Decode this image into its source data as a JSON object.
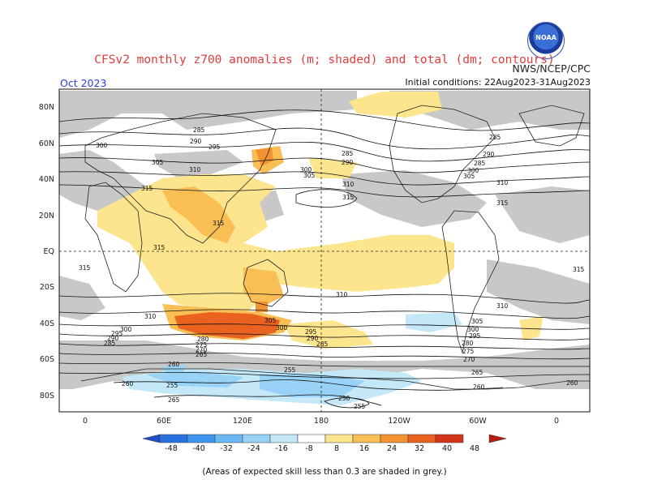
{
  "title": "CFSv2 monthly z700 anomalies (m; shaded) and total (dm; contours)",
  "agency": "NWS/NCEP/CPC",
  "month": "Oct 2023",
  "initial_conditions": "Initial conditions: 22Aug2023-31Aug2023",
  "logo_text": "NOAA",
  "lat_labels": [
    "80N",
    "60N",
    "40N",
    "20N",
    "EQ",
    "20S",
    "40S",
    "60S",
    "80S"
  ],
  "lon_labels": [
    "0",
    "60E",
    "120E",
    "180",
    "120W",
    "60W",
    "0"
  ],
  "contour_labels": [
    "285",
    "290",
    "295",
    "300",
    "305",
    "310",
    "315",
    "280",
    "275",
    "270",
    "265",
    "260",
    "255",
    "250"
  ],
  "colorbar": {
    "labels": [
      "-48",
      "-40",
      "-32",
      "-24",
      "-16",
      "-8",
      "8",
      "16",
      "24",
      "32",
      "40",
      "48"
    ],
    "colors": [
      "#1f4fc8",
      "#2a72e0",
      "#3f96ee",
      "#6cb8f4",
      "#98d2f6",
      "#c4e8f8",
      "#ffffff",
      "#fde58e",
      "#f9be54",
      "#f39230",
      "#ea6220",
      "#d43418",
      "#b51e10"
    ]
  },
  "skill_note": "(Areas of expected skill less than 0.3 are shaded in grey.)"
}
